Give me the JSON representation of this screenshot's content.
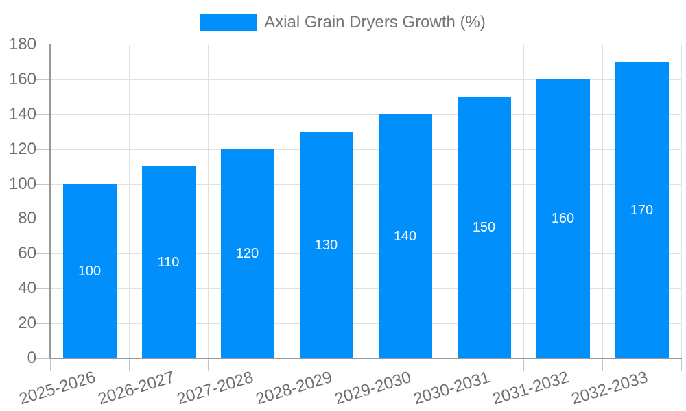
{
  "chart_data": {
    "type": "bar",
    "title": "",
    "categories": [
      "2025-2026",
      "2026-2027",
      "2027-2028",
      "2028-2029",
      "2029-2030",
      "2030-2031",
      "2031-2032",
      "2032-2033"
    ],
    "series": [
      {
        "name": "Axial Grain Dryers Growth (%)",
        "values": [
          100,
          110,
          120,
          130,
          140,
          150,
          160,
          170
        ]
      }
    ],
    "bar_value_labels_shown": true,
    "xlabel": "",
    "ylabel": "",
    "ylim": [
      0,
      180
    ],
    "yticks": [
      0,
      20,
      40,
      60,
      80,
      100,
      120,
      140,
      160,
      180
    ],
    "grid": true,
    "legend_position": "top",
    "x_label_rotation_deg": -17,
    "colors": {
      "bar": "#008FFB",
      "bar_label_text": "#ffffff",
      "grid_line": "#e0e0e0",
      "tick_mark": "#c4c4c4",
      "axis_line": "#999999",
      "tick_label_text": "#6e6e6e",
      "legend_text": "#757575",
      "background": "#ffffff"
    }
  }
}
